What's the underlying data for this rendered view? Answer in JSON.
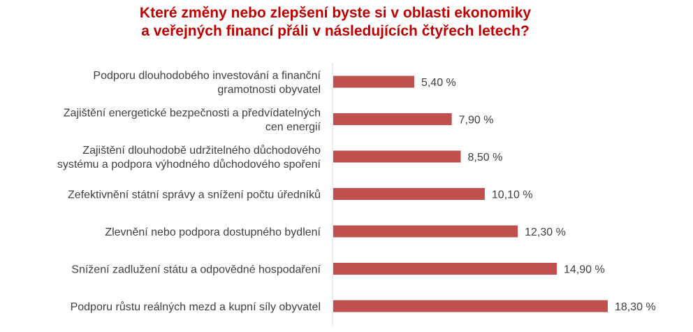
{
  "chart_data": {
    "type": "bar",
    "orientation": "horizontal",
    "title_lines": [
      "Které změny nebo zlepšení byste si v oblasti ekonomiky",
      "a veřejných financí přáli v následujících čtyřech letech?"
    ],
    "categories": [
      [
        "Podporu dlouhodobého investování a finanční",
        "gramotnosti obyvatel"
      ],
      [
        "Zajištění energetické bezpečnosti a předvídatelných",
        "cen energií"
      ],
      [
        "Zajištění dlouhodobě udržitelného důchodového",
        "systému a podpora výhodného důchodového spoření"
      ],
      [
        "Zefektivnění státní správy a snížení počtu úředníků"
      ],
      [
        "Zlevnění nebo podpora dostupného bydlení"
      ],
      [
        "Snížení zadlužení státu a odpovědné hospodaření"
      ],
      [
        "Podporu růstu reálných mezd a kupní síly obyvatel"
      ]
    ],
    "values": [
      5.4,
      7.9,
      8.5,
      10.1,
      12.3,
      14.9,
      18.3
    ],
    "value_labels": [
      "5,40 %",
      "7,90 %",
      "8,50 %",
      "10,10 %",
      "12,30 %",
      "14,90 %",
      "18,30 %"
    ],
    "xlim": [
      0,
      18.3
    ],
    "bar_color": "#c0504d",
    "title_color": "#c00000"
  }
}
